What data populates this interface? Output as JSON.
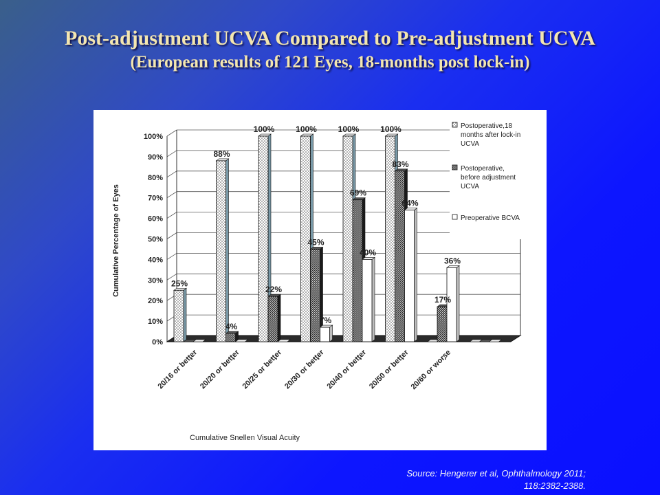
{
  "slide": {
    "title_line1": "Post-adjustment UCVA Compared to Pre-adjustment UCVA",
    "title_line2": "(European results of 121 Eyes, 18-months post lock-in)",
    "source_line1": "Source: Hengerer et al, Ophthalmology 2011;",
    "source_line2": "118:2382-2388."
  },
  "chart_data": {
    "type": "bar",
    "xlabel": "Cumulative  Snellen Visual Acuity",
    "ylabel": "Cumulative  Percentage of Eyes",
    "ylim": [
      0,
      100
    ],
    "yticks": [
      "0%",
      "10%",
      "20%",
      "30%",
      "40%",
      "50%",
      "60%",
      "70%",
      "80%",
      "90%",
      "100%"
    ],
    "categories": [
      "20/16 or better",
      "20/20 or better",
      "20/25 or better",
      "20/30 or better",
      "20/40 or better",
      "20/50 or better",
      "20/60 or worse",
      ""
    ],
    "series": [
      {
        "name": "Postoperative,18 months after lock-in UCVA",
        "values": [
          25,
          88,
          100,
          100,
          100,
          100,
          0,
          0
        ],
        "labels": [
          "25%",
          "88%",
          "100%",
          "100%",
          "100%",
          "100%",
          "",
          ""
        ]
      },
      {
        "name": "Postoperative, before adjustment UCVA",
        "values": [
          0,
          4,
          22,
          45,
          69,
          83,
          17,
          0
        ],
        "labels": [
          "",
          "4%",
          "22%",
          "45%",
          "69%",
          "83%",
          "17%",
          ""
        ]
      },
      {
        "name": "Preoperative BCVA",
        "values": [
          0,
          0,
          0,
          7,
          40,
          64,
          36,
          0
        ],
        "labels": [
          "",
          "",
          "",
          "7%",
          "40%",
          "64%",
          "36%",
          ""
        ]
      }
    ],
    "colors": {
      "series1": "#d8d8d8",
      "series2": "#3a3a3a",
      "series3": "#ffffff"
    },
    "grid": true,
    "legend_position": "top-right",
    "style": "3d-bars"
  }
}
